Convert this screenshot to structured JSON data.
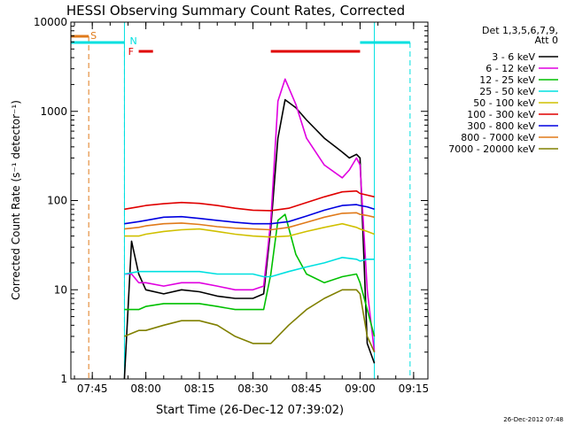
{
  "chart_data": {
    "type": "line",
    "title": "HESSI Observing Summary Count Rates, Corrected",
    "xlabel": "Start Time (26-Dec-12 07:39:02)",
    "ylabel": "Corrected Count Rate (s⁻¹ detector⁻¹)",
    "y_scale": "log",
    "ylim": [
      1,
      10000
    ],
    "xlim": [
      "07:39",
      "09:19"
    ],
    "x_ticks": [
      "07:45",
      "08:00",
      "08:15",
      "08:30",
      "08:45",
      "09:00",
      "09:15"
    ],
    "y_ticks": [
      "1",
      "10",
      "100",
      "1000",
      "10000"
    ],
    "legend_title": "Det 1,3,5,6,7,9,\nAtt 0",
    "legend_position": "right",
    "footer_date": "26-Dec-2012 07:48",
    "flag_labels": [
      "S",
      "F",
      "N"
    ],
    "flags": [
      {
        "label": "S",
        "color": "#e07a1a",
        "bars": [
          [
            "07:39",
            "07:44"
          ]
        ],
        "lines": [
          "07:44"
        ]
      },
      {
        "label": "F",
        "color": "#e00000",
        "bars": [
          [
            "07:58",
            "08:02"
          ],
          [
            "08:35",
            "09:00"
          ]
        ],
        "lines": []
      },
      {
        "label": "N",
        "color": "#00e0e0",
        "bars": [
          [
            "07:39",
            "07:54"
          ],
          [
            "09:00",
            "09:14"
          ]
        ],
        "lines": [
          "07:54",
          "09:14"
        ]
      }
    ],
    "data_span": [
      "07:54",
      "09:04"
    ],
    "series": [
      {
        "name": "3 - 6 keV",
        "color": "#000000",
        "x": [
          "07:54",
          "07:56",
          "07:58",
          "08:00",
          "08:05",
          "08:10",
          "08:15",
          "08:20",
          "08:25",
          "08:30",
          "08:33",
          "08:35",
          "08:37",
          "08:39",
          "08:42",
          "08:45",
          "08:50",
          "08:55",
          "08:57",
          "08:59",
          "09:00",
          "09:02",
          "09:04"
        ],
        "y": [
          1,
          35,
          15,
          10,
          9,
          10,
          9.5,
          8.5,
          8,
          8,
          9,
          50,
          500,
          1350,
          1100,
          800,
          500,
          350,
          300,
          330,
          300,
          2.5,
          1.5
        ]
      },
      {
        "name": "6 - 12 keV",
        "color": "#e000e0",
        "x": [
          "07:54",
          "07:56",
          "07:58",
          "08:00",
          "08:05",
          "08:10",
          "08:15",
          "08:20",
          "08:25",
          "08:30",
          "08:33",
          "08:35",
          "08:37",
          "08:39",
          "08:42",
          "08:45",
          "08:50",
          "08:55",
          "08:57",
          "08:59",
          "09:00",
          "09:02",
          "09:04"
        ],
        "y": [
          15,
          15,
          12,
          12,
          11,
          12,
          12,
          11,
          10,
          10,
          11,
          60,
          1300,
          2300,
          1200,
          500,
          250,
          180,
          220,
          300,
          250,
          10,
          2
        ]
      },
      {
        "name": "12 - 25 keV",
        "color": "#00c000",
        "x": [
          "07:54",
          "07:58",
          "08:00",
          "08:05",
          "08:10",
          "08:15",
          "08:20",
          "08:25",
          "08:30",
          "08:33",
          "08:35",
          "08:37",
          "08:39",
          "08:42",
          "08:45",
          "08:50",
          "08:55",
          "08:59",
          "09:00",
          "09:02",
          "09:04"
        ],
        "y": [
          6,
          6,
          6.5,
          7,
          7,
          7,
          6.5,
          6,
          6,
          6,
          15,
          60,
          70,
          25,
          15,
          12,
          14,
          15,
          12,
          6,
          3
        ]
      },
      {
        "name": "25 - 50 keV",
        "color": "#00e0e0",
        "x": [
          "07:54",
          "07:58",
          "08:00",
          "08:05",
          "08:10",
          "08:15",
          "08:20",
          "08:25",
          "08:30",
          "08:33",
          "08:35",
          "08:40",
          "08:45",
          "08:50",
          "08:55",
          "08:59",
          "09:00",
          "09:02",
          "09:04"
        ],
        "y": [
          15,
          16,
          16,
          16,
          16,
          16,
          15,
          15,
          15,
          14,
          14,
          16,
          18,
          20,
          23,
          22,
          21,
          22,
          22
        ]
      },
      {
        "name": "50 - 100 keV",
        "color": "#d0c000",
        "x": [
          "07:54",
          "07:58",
          "08:00",
          "08:05",
          "08:10",
          "08:15",
          "08:20",
          "08:25",
          "08:30",
          "08:35",
          "08:40",
          "08:45",
          "08:50",
          "08:55",
          "08:59",
          "09:00",
          "09:02",
          "09:04"
        ],
        "y": [
          40,
          40,
          42,
          45,
          47,
          48,
          45,
          42,
          40,
          39,
          40,
          45,
          50,
          55,
          50,
          48,
          45,
          42
        ]
      },
      {
        "name": "100 - 300 keV",
        "color": "#e00000",
        "x": [
          "07:54",
          "07:58",
          "08:00",
          "08:05",
          "08:10",
          "08:15",
          "08:20",
          "08:25",
          "08:30",
          "08:35",
          "08:40",
          "08:45",
          "08:50",
          "08:55",
          "08:59",
          "09:00",
          "09:02",
          "09:04"
        ],
        "y": [
          80,
          85,
          88,
          92,
          95,
          93,
          88,
          82,
          78,
          77,
          82,
          95,
          110,
          125,
          128,
          120,
          115,
          110
        ]
      },
      {
        "name": "300 - 800 keV",
        "color": "#0000e0",
        "x": [
          "07:54",
          "07:58",
          "08:00",
          "08:05",
          "08:10",
          "08:15",
          "08:20",
          "08:25",
          "08:30",
          "08:35",
          "08:40",
          "08:45",
          "08:50",
          "08:55",
          "08:59",
          "09:00",
          "09:02",
          "09:04"
        ],
        "y": [
          55,
          58,
          60,
          65,
          66,
          63,
          60,
          57,
          55,
          55,
          58,
          67,
          78,
          88,
          90,
          88,
          85,
          80
        ]
      },
      {
        "name": "800 - 7000 keV",
        "color": "#e07a1a",
        "x": [
          "07:54",
          "07:58",
          "08:00",
          "08:05",
          "08:10",
          "08:15",
          "08:20",
          "08:25",
          "08:30",
          "08:35",
          "08:40",
          "08:45",
          "08:50",
          "08:55",
          "08:59",
          "09:00",
          "09:02",
          "09:04"
        ],
        "y": [
          48,
          50,
          52,
          55,
          56,
          54,
          51,
          49,
          48,
          47,
          50,
          57,
          65,
          72,
          73,
          70,
          68,
          65
        ]
      },
      {
        "name": "7000 - 20000 keV",
        "color": "#808000",
        "x": [
          "07:54",
          "07:58",
          "08:00",
          "08:05",
          "08:10",
          "08:15",
          "08:20",
          "08:25",
          "08:30",
          "08:35",
          "08:40",
          "08:45",
          "08:50",
          "08:55",
          "08:59",
          "09:00",
          "09:02",
          "09:04"
        ],
        "y": [
          3,
          3.5,
          3.5,
          4,
          4.5,
          4.5,
          4,
          3,
          2.5,
          2.5,
          4,
          6,
          8,
          10,
          10,
          9,
          3,
          2
        ]
      }
    ]
  }
}
